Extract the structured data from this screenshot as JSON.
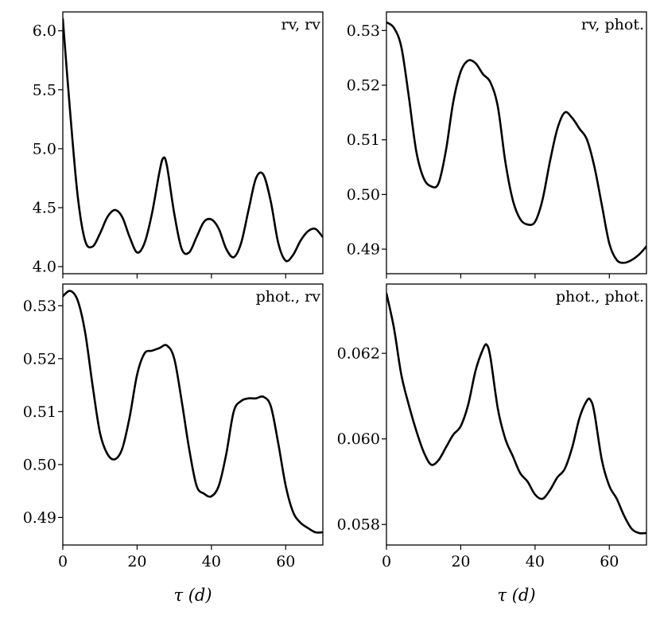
{
  "chart_data": [
    {
      "type": "line",
      "label": "rv, rv",
      "x": [
        0,
        2,
        4,
        6,
        8,
        10,
        12,
        14,
        16,
        18,
        20,
        22,
        24,
        26,
        27,
        28,
        30,
        32,
        34,
        36,
        38,
        40,
        42,
        44,
        46,
        48,
        50,
        52,
        54,
        56,
        58,
        60,
        62,
        64,
        66,
        68,
        70
      ],
      "y": [
        6.1,
        5.3,
        4.6,
        4.22,
        4.17,
        4.28,
        4.42,
        4.48,
        4.42,
        4.25,
        4.12,
        4.2,
        4.45,
        4.8,
        4.92,
        4.86,
        4.45,
        4.15,
        4.12,
        4.25,
        4.38,
        4.4,
        4.32,
        4.15,
        4.08,
        4.2,
        4.48,
        4.75,
        4.78,
        4.55,
        4.2,
        4.05,
        4.1,
        4.22,
        4.3,
        4.32,
        4.25
      ],
      "xlim": [
        0,
        70
      ],
      "ylim": [
        3.94,
        6.16
      ],
      "yticks": [
        "4.0",
        "4.5",
        "5.0",
        "5.5",
        "6.0"
      ],
      "ytick_values": [
        4.0,
        4.5,
        5.0,
        5.5,
        6.0
      ]
    },
    {
      "type": "line",
      "label": "rv, phot.",
      "x": [
        0,
        2,
        4,
        6,
        8,
        10,
        12,
        14,
        16,
        18,
        20,
        22,
        24,
        26,
        28,
        30,
        32,
        34,
        36,
        38,
        40,
        42,
        44,
        46,
        48,
        50,
        52,
        54,
        56,
        58,
        60,
        62,
        64,
        66,
        68,
        70
      ],
      "y": [
        0.5315,
        0.5305,
        0.527,
        0.518,
        0.508,
        0.503,
        0.5015,
        0.502,
        0.508,
        0.517,
        0.5225,
        0.5245,
        0.524,
        0.522,
        0.5205,
        0.516,
        0.506,
        0.499,
        0.4955,
        0.4945,
        0.495,
        0.499,
        0.506,
        0.512,
        0.515,
        0.514,
        0.512,
        0.51,
        0.505,
        0.498,
        0.491,
        0.488,
        0.4875,
        0.488,
        0.489,
        0.4905
      ],
      "xlim": [
        0,
        70
      ],
      "ylim": [
        0.4855,
        0.5334
      ],
      "yticks": [
        "0.49",
        "0.50",
        "0.51",
        "0.52",
        "0.53"
      ],
      "ytick_values": [
        0.49,
        0.5,
        0.51,
        0.52,
        0.53
      ]
    },
    {
      "type": "line",
      "label": "phot., rv",
      "x": [
        0,
        2,
        4,
        6,
        8,
        10,
        12,
        14,
        16,
        18,
        20,
        22,
        24,
        26,
        28,
        30,
        32,
        34,
        36,
        38,
        40,
        42,
        44,
        46,
        48,
        50,
        52,
        54,
        56,
        58,
        60,
        62,
        64,
        66,
        68,
        70
      ],
      "y": [
        0.5318,
        0.5328,
        0.531,
        0.525,
        0.515,
        0.506,
        0.502,
        0.501,
        0.503,
        0.509,
        0.517,
        0.521,
        0.5215,
        0.522,
        0.5225,
        0.52,
        0.512,
        0.503,
        0.496,
        0.4945,
        0.494,
        0.496,
        0.502,
        0.51,
        0.512,
        0.5125,
        0.5125,
        0.5128,
        0.511,
        0.504,
        0.496,
        0.491,
        0.489,
        0.488,
        0.4872,
        0.4872
      ],
      "xlim": [
        0,
        70
      ],
      "ylim": [
        0.4848,
        0.5341
      ],
      "yticks": [
        "0.49",
        "0.50",
        "0.51",
        "0.52",
        "0.53"
      ],
      "ytick_values": [
        0.49,
        0.5,
        0.51,
        0.52,
        0.53
      ]
    },
    {
      "type": "line",
      "label": "phot., phot.",
      "x": [
        0,
        2,
        4,
        6,
        8,
        10,
        12,
        14,
        16,
        18,
        20,
        22,
        24,
        26,
        27,
        28,
        30,
        32,
        34,
        36,
        38,
        40,
        42,
        44,
        46,
        48,
        50,
        52,
        54,
        55,
        56,
        58,
        60,
        62,
        64,
        66,
        68,
        70
      ],
      "y": [
        0.0634,
        0.0626,
        0.0615,
        0.0608,
        0.0602,
        0.0597,
        0.0594,
        0.0595,
        0.0598,
        0.0601,
        0.0603,
        0.0608,
        0.0616,
        0.0621,
        0.0622,
        0.0619,
        0.0607,
        0.06,
        0.0596,
        0.0592,
        0.059,
        0.0587,
        0.0586,
        0.0588,
        0.0591,
        0.0593,
        0.0598,
        0.0605,
        0.0609,
        0.0609,
        0.0606,
        0.0595,
        0.0589,
        0.0586,
        0.0582,
        0.0579,
        0.0578,
        0.0578
      ],
      "xlim": [
        0,
        70
      ],
      "ylim": [
        0.05752,
        0.06362
      ],
      "yticks": [
        "0.058",
        "0.060",
        "0.062"
      ],
      "ytick_values": [
        0.058,
        0.06,
        0.062
      ]
    }
  ],
  "xticks": [
    "0",
    "20",
    "40",
    "60"
  ],
  "xtick_values": [
    0,
    20,
    40,
    60
  ],
  "xlabel": "τ (d)"
}
